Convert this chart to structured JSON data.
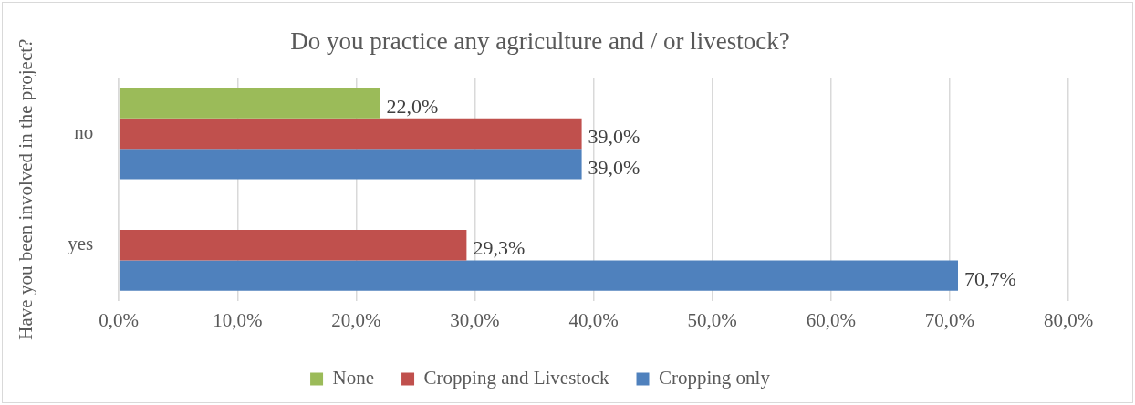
{
  "chart_data": {
    "type": "bar",
    "orientation": "horizontal",
    "title": "Do you practice any agriculture and / or livestock?",
    "ylabel": "Have you been involved in the project?",
    "categories": [
      "no",
      "yes"
    ],
    "series": [
      {
        "name": "None",
        "color": "#9bbb59",
        "values": [
          22.0,
          null
        ],
        "value_labels": [
          "22,0%",
          null
        ]
      },
      {
        "name": "Cropping and Livestock",
        "color": "#c0504d",
        "values": [
          39.0,
          29.3
        ],
        "value_labels": [
          "39,0%",
          "29,3%"
        ]
      },
      {
        "name": "Cropping only",
        "color": "#4f81bd",
        "values": [
          39.0,
          70.7
        ],
        "value_labels": [
          "39,0%",
          "70,7%"
        ]
      }
    ],
    "xlim": [
      0,
      80
    ],
    "xticks": [
      {
        "value": 0,
        "label": "0,0%"
      },
      {
        "value": 10,
        "label": "10,0%"
      },
      {
        "value": 20,
        "label": "20,0%"
      },
      {
        "value": 30,
        "label": "30,0%"
      },
      {
        "value": 40,
        "label": "40,0%"
      },
      {
        "value": 50,
        "label": "50,0%"
      },
      {
        "value": 60,
        "label": "60,0%"
      },
      {
        "value": 70,
        "label": "70,0%"
      },
      {
        "value": 80,
        "label": "80,0%"
      }
    ],
    "grid": "x",
    "legend": "bottom"
  }
}
